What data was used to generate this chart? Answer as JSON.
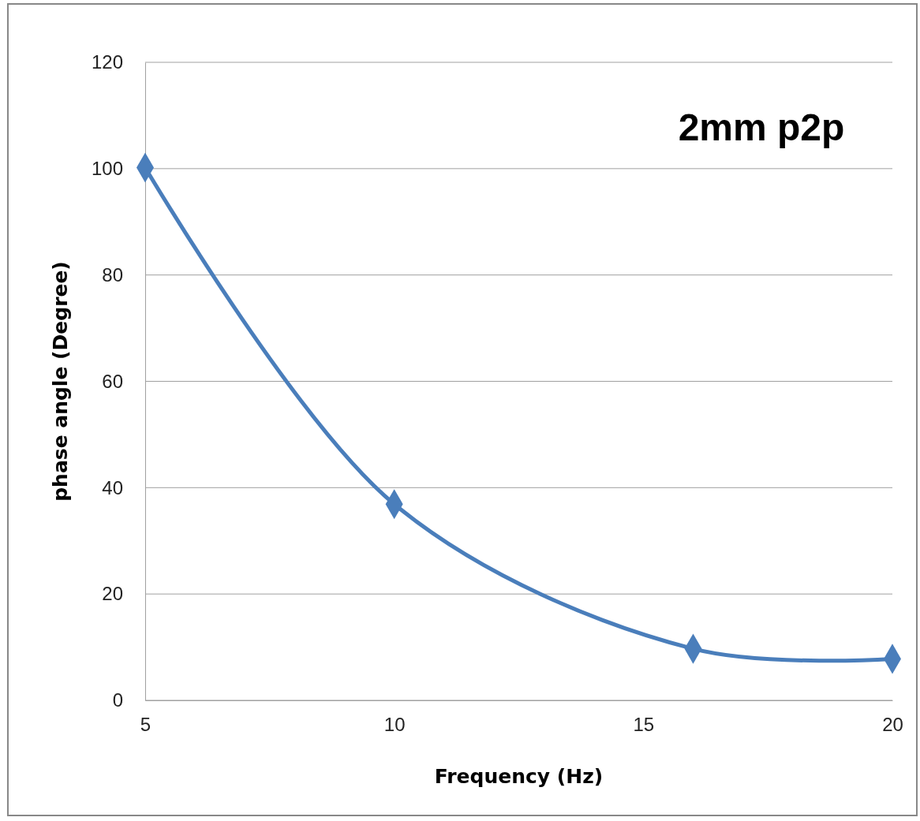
{
  "chart_data": {
    "type": "line",
    "annotations": [
      "2mm p2p"
    ],
    "xlabel": "Frequency (Hz)",
    "ylabel": "phase angle (Degree)",
    "x": [
      5,
      10,
      16,
      20
    ],
    "series": [
      {
        "color": "#4a7ebb",
        "values": [
          100.2,
          36.9,
          9.7,
          7.8
        ]
      }
    ],
    "xlim": [
      5,
      20
    ],
    "xticks": [
      5,
      10,
      15,
      20
    ],
    "ylim": [
      0,
      120
    ],
    "yticks": [
      0,
      20,
      40,
      60,
      80,
      100,
      120
    ],
    "grid": "y",
    "marker": "diamond",
    "line_style": "solid"
  }
}
